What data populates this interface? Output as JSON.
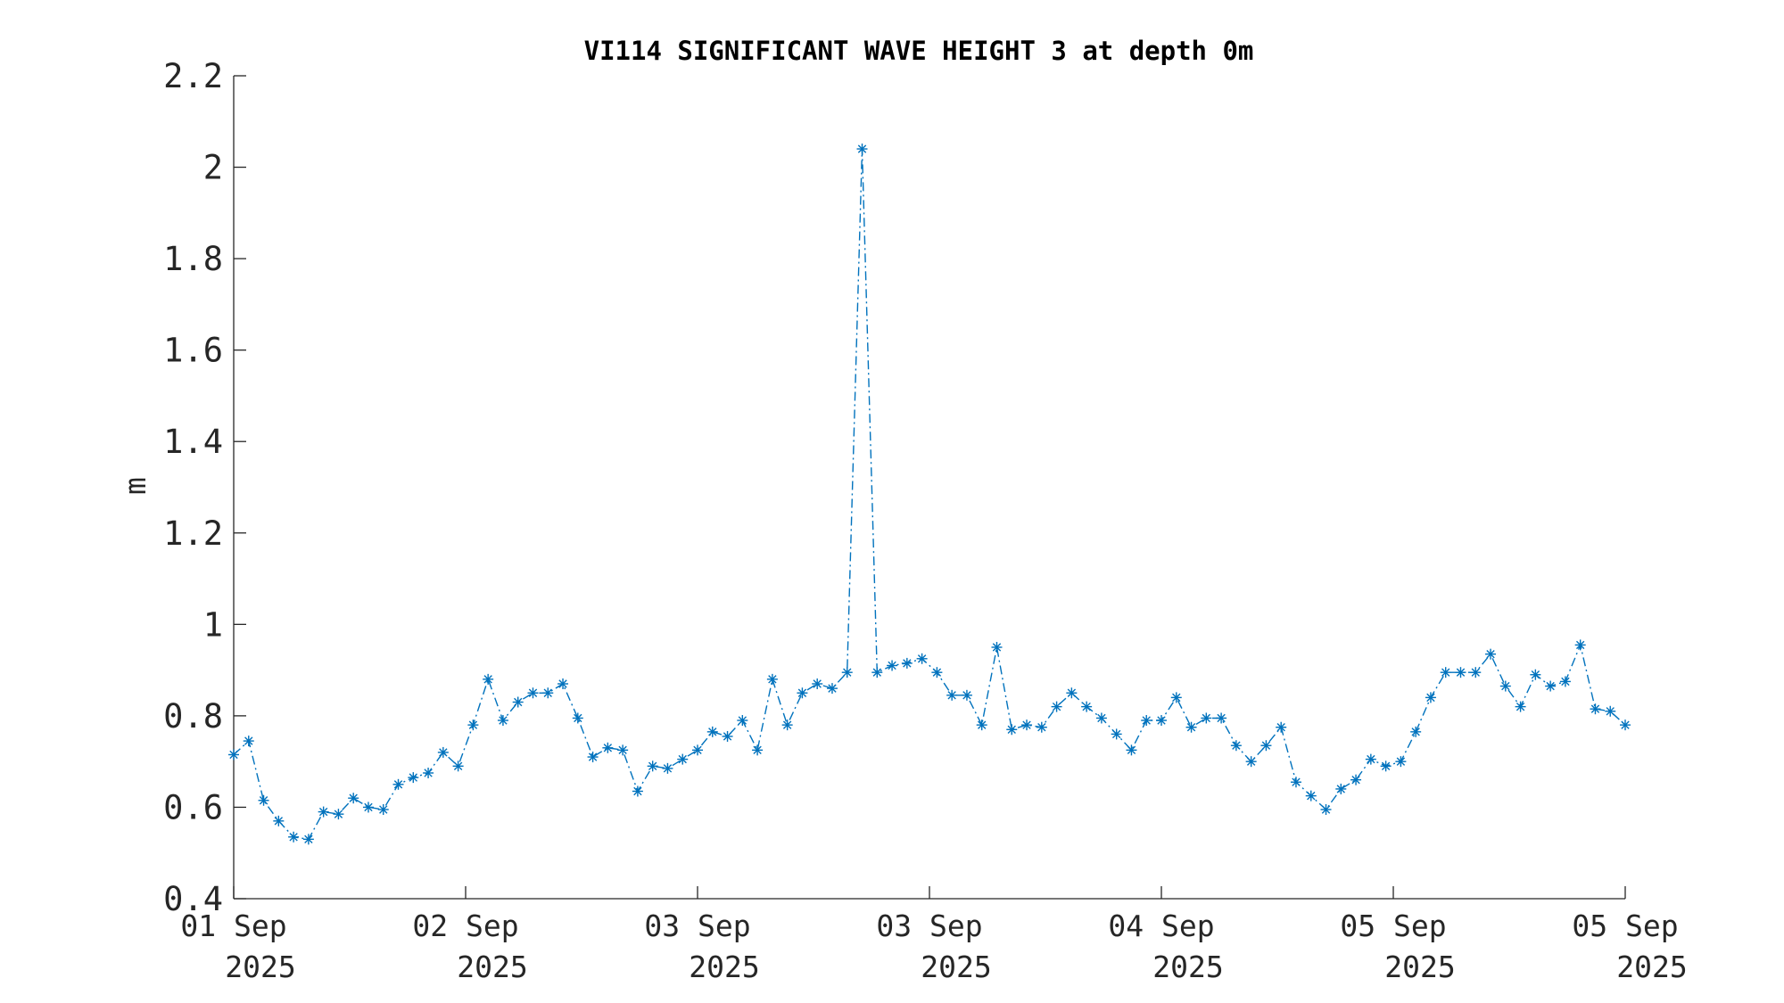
{
  "chart_data": {
    "type": "line",
    "title": "VI114 SIGNIFICANT WAVE HEIGHT 3 at depth 0m",
    "xlabel": "",
    "ylabel": "m",
    "ylim": [
      0.4,
      2.2
    ],
    "yticks": [
      0.4,
      0.6,
      0.8,
      1,
      1.2,
      1.4,
      1.6,
      1.8,
      2,
      2.2
    ],
    "ytick_labels": [
      "0.4",
      "0.6",
      "0.8",
      "1",
      "1.2",
      "1.4",
      "1.6",
      "1.8",
      "2",
      "2.2"
    ],
    "xtick_labels": [
      {
        "line1": "01 Sep",
        "line2": "2025"
      },
      {
        "line1": "02 Sep",
        "line2": "2025"
      },
      {
        "line1": "03 Sep",
        "line2": "2025"
      },
      {
        "line1": "03 Sep",
        "line2": "2025"
      },
      {
        "line1": "04 Sep",
        "line2": "2025"
      },
      {
        "line1": "05 Sep",
        "line2": "2025"
      },
      {
        "line1": "05 Sep",
        "line2": "2025"
      }
    ],
    "grid": false,
    "legend": "none",
    "color": "#0072BD",
    "line_style": "dash-dot",
    "marker": "asterisk",
    "series": [
      {
        "values": [
          0.715,
          0.745,
          0.615,
          0.57,
          0.535,
          0.53,
          0.59,
          0.585,
          0.62,
          0.6,
          0.595,
          0.65,
          0.665,
          0.675,
          0.72,
          0.69,
          0.78,
          0.88,
          0.79,
          0.83,
          0.85,
          0.85,
          0.87,
          0.795,
          0.71,
          0.73,
          0.725,
          0.635,
          0.69,
          0.685,
          0.705,
          0.725,
          0.765,
          0.755,
          0.79,
          0.725,
          0.88,
          0.78,
          0.85,
          0.87,
          0.86,
          0.895,
          2.04,
          0.895,
          0.91,
          0.915,
          0.925,
          0.895,
          0.845,
          0.845,
          0.78,
          0.95,
          0.77,
          0.78,
          0.775,
          0.82,
          0.85,
          0.82,
          0.795,
          0.76,
          0.725,
          0.79,
          0.79,
          0.84,
          0.775,
          0.795,
          0.795,
          0.735,
          0.7,
          0.735,
          0.775,
          0.655,
          0.625,
          0.595,
          0.64,
          0.66,
          0.705,
          0.69,
          0.7,
          0.765,
          0.84,
          0.895,
          0.895,
          0.895,
          0.935,
          0.865,
          0.82,
          0.89,
          0.865,
          0.875,
          0.955,
          0.815,
          0.81,
          0.78
        ]
      }
    ]
  }
}
